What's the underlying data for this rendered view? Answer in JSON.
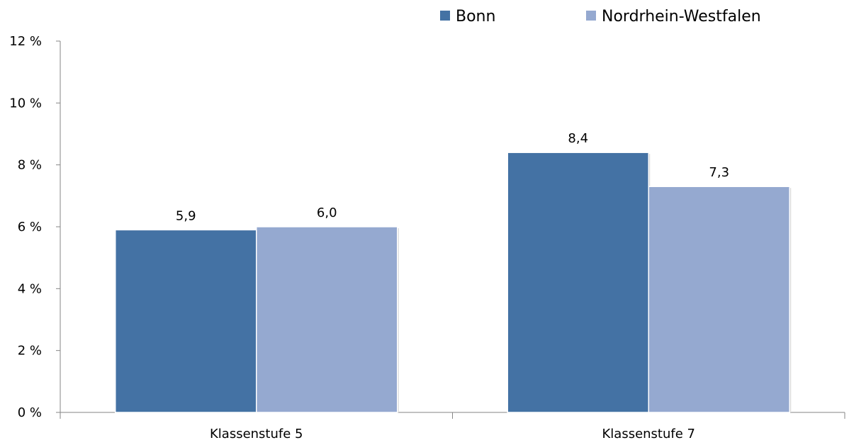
{
  "chart_data": {
    "type": "bar",
    "categories": [
      "Klassenstufe 5",
      "Klassenstufe 7"
    ],
    "series": [
      {
        "name": "Bonn",
        "values": [
          5.9,
          8.4
        ],
        "labels": [
          "5,9",
          "8,4"
        ],
        "color": "#4472a4"
      },
      {
        "name": "Nordrhein-Westfalen",
        "values": [
          6.0,
          7.3
        ],
        "labels": [
          "6,0",
          "7,3"
        ],
        "color": "#95a9d0"
      }
    ],
    "ylim": [
      0,
      12
    ],
    "yticks": [
      0,
      2,
      4,
      6,
      8,
      10,
      12
    ],
    "ytick_labels": [
      "0 %",
      "2 %",
      "4 %",
      "6 %",
      "8 %",
      "10 %",
      "12 %"
    ],
    "title": "",
    "xlabel": "",
    "ylabel": "",
    "grid": false,
    "legend_position": "top-right"
  }
}
